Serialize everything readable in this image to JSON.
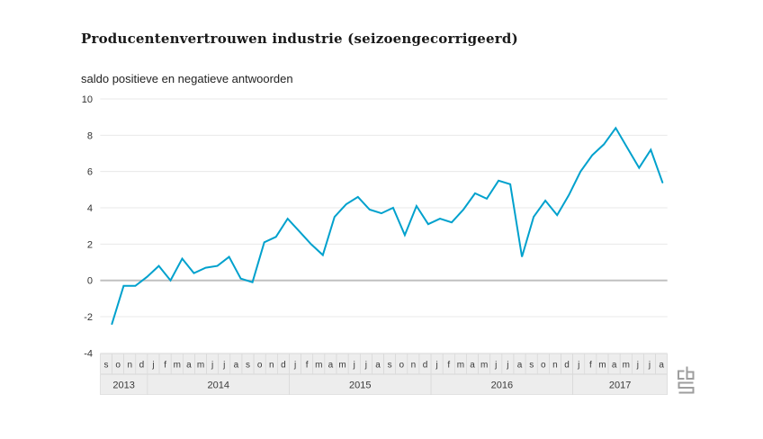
{
  "header": {
    "title": "Producentenvertrouwen industrie (seizoengecorrigeerd)",
    "subtitle": "saldo positieve en negatieve antwoorden"
  },
  "chart_data": {
    "type": "line",
    "title": "Producentenvertrouwen industrie (seizoengecorrigeerd)",
    "ylabel_note": "saldo positieve en negatieve antwoorden",
    "x_first_month": "september 2013",
    "x_last_month": "augustus 2017",
    "x_months": [
      "s",
      "o",
      "n",
      "d",
      "j",
      "f",
      "m",
      "a",
      "m",
      "j",
      "j",
      "a",
      "s",
      "o",
      "n",
      "d",
      "j",
      "f",
      "m",
      "a",
      "m",
      "j",
      "j",
      "a",
      "s",
      "o",
      "n",
      "d",
      "j",
      "f",
      "m",
      "a",
      "m",
      "j",
      "j",
      "a",
      "s",
      "o",
      "n",
      "d",
      "j",
      "f",
      "m",
      "a",
      "m",
      "j",
      "j",
      "a"
    ],
    "x_years": [
      {
        "label": "2013",
        "months": 4
      },
      {
        "label": "2014",
        "months": 12
      },
      {
        "label": "2015",
        "months": 12
      },
      {
        "label": "2016",
        "months": 12
      },
      {
        "label": "2017",
        "months": 8
      }
    ],
    "series": [
      {
        "name": "saldo positieve en negatieve antwoorden",
        "values": [
          -2.4,
          -0.3,
          -0.3,
          0.2,
          0.8,
          0.0,
          1.2,
          0.4,
          0.7,
          0.8,
          1.3,
          0.1,
          -0.1,
          2.1,
          2.4,
          3.4,
          2.7,
          2.0,
          1.4,
          3.5,
          4.2,
          4.6,
          3.9,
          3.7,
          4.0,
          2.5,
          4.1,
          3.1,
          3.4,
          3.2,
          3.9,
          4.8,
          4.5,
          5.5,
          5.3,
          1.3,
          3.5,
          4.4,
          3.6,
          4.7,
          6.0,
          6.9,
          7.5,
          8.4,
          7.3,
          6.2,
          7.2,
          5.4
        ]
      }
    ],
    "y_ticks": [
      10,
      8,
      6,
      4,
      2,
      0,
      -2,
      -4
    ],
    "ylim": [
      -4,
      10
    ],
    "grid": true,
    "legend": "none",
    "colors": {
      "line": "#00a1cd",
      "grid": "#e8e8e8",
      "zero_line": "#c0c0c0",
      "axis_box_fill": "#ededed",
      "axis_box_border": "#d4d4d4",
      "axis_text": "#3a3a3a",
      "logo": "#9e9e9e"
    }
  },
  "logo": {
    "name": "CBS"
  }
}
